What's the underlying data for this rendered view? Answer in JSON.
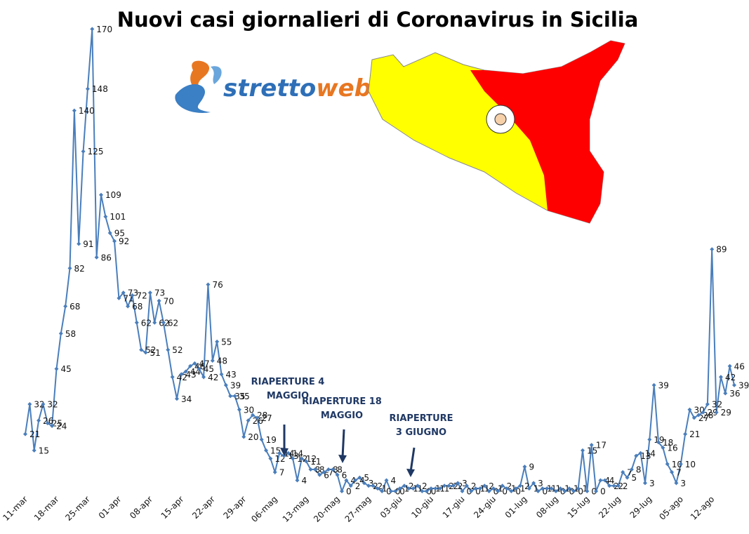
{
  "chart_data": {
    "type": "line",
    "title": "Nuovi casi giornalieri di Coronavirus in Sicilia",
    "logo": {
      "parts": [
        "stretto",
        "web"
      ]
    },
    "annotations": [
      {
        "lines": [
          "RIAPERTURE 4",
          "MAGGIO"
        ]
      },
      {
        "lines": [
          "RIAPERTURE 18",
          "MAGGIO"
        ]
      },
      {
        "lines": [
          "RIAPERTURE",
          "3 GIUGNO"
        ]
      }
    ],
    "categories": [
      "11-mar",
      null,
      null,
      null,
      null,
      null,
      null,
      "18-mar",
      null,
      null,
      null,
      null,
      null,
      null,
      "25-mar",
      null,
      null,
      null,
      null,
      null,
      null,
      "01-apr",
      null,
      null,
      null,
      null,
      null,
      null,
      "08-apr",
      null,
      null,
      null,
      null,
      null,
      null,
      "15-apr",
      null,
      null,
      null,
      null,
      null,
      null,
      "22-apr",
      null,
      null,
      null,
      null,
      null,
      null,
      "29-apr",
      null,
      null,
      null,
      null,
      null,
      null,
      "06-mag",
      null,
      null,
      null,
      null,
      null,
      null,
      "13-mag",
      null,
      null,
      null,
      null,
      null,
      null,
      "20-mag",
      null,
      null,
      null,
      null,
      null,
      null,
      "27-mag",
      null,
      null,
      null,
      null,
      null,
      null,
      "03-giu",
      null,
      null,
      null,
      null,
      null,
      null,
      "10-giu",
      null,
      null,
      null,
      null,
      null,
      null,
      "17-giu",
      null,
      null,
      null,
      null,
      null,
      null,
      "24-giu",
      null,
      null,
      null,
      null,
      null,
      null,
      "01-lug",
      null,
      null,
      null,
      null,
      null,
      null,
      "08-lug",
      null,
      null,
      null,
      null,
      null,
      null,
      "15-lug",
      null,
      null,
      null,
      null,
      null,
      null,
      "22-lug",
      null,
      null,
      null,
      null,
      null,
      null,
      "29-lug",
      null,
      null,
      null,
      null,
      null,
      null,
      "05-ago",
      null,
      null,
      null,
      null,
      null,
      null,
      "12-ago",
      null,
      null,
      null,
      null,
      null
    ],
    "values": [
      21,
      32,
      15,
      26,
      32,
      25,
      24,
      45,
      58,
      68,
      82,
      140,
      91,
      125,
      148,
      170,
      86,
      109,
      101,
      95,
      92,
      71,
      73,
      68,
      72,
      62,
      52,
      51,
      73,
      62,
      70,
      62,
      52,
      42,
      34,
      43,
      44,
      46,
      47,
      45,
      42,
      76,
      48,
      55,
      43,
      39,
      35,
      35,
      30,
      20,
      26,
      28,
      27,
      19,
      15,
      12,
      7,
      14,
      13,
      14,
      12,
      4,
      12,
      11,
      8,
      8,
      6,
      7,
      8,
      8,
      6,
      0,
      4,
      2,
      4,
      5,
      3,
      2,
      2,
      1,
      0,
      4,
      0,
      0,
      1,
      2,
      1,
      1,
      2,
      0,
      0,
      1,
      1,
      1,
      2,
      2,
      2,
      3,
      0,
      2,
      0,
      1,
      1,
      2,
      0,
      1,
      0,
      2,
      1,
      0,
      1,
      2,
      9,
      1,
      3,
      0,
      1,
      1,
      1,
      0,
      1,
      0,
      1,
      0,
      1,
      15,
      0,
      17,
      0,
      4,
      4,
      2,
      2,
      2,
      7,
      5,
      8,
      13,
      14,
      3,
      19,
      39,
      18,
      16,
      10,
      7,
      3,
      10,
      21,
      30,
      27,
      28,
      29,
      32,
      89,
      29,
      42,
      36,
      46,
      39
    ],
    "color": "#4a7ebb",
    "ylim": [
      0,
      175
    ]
  }
}
